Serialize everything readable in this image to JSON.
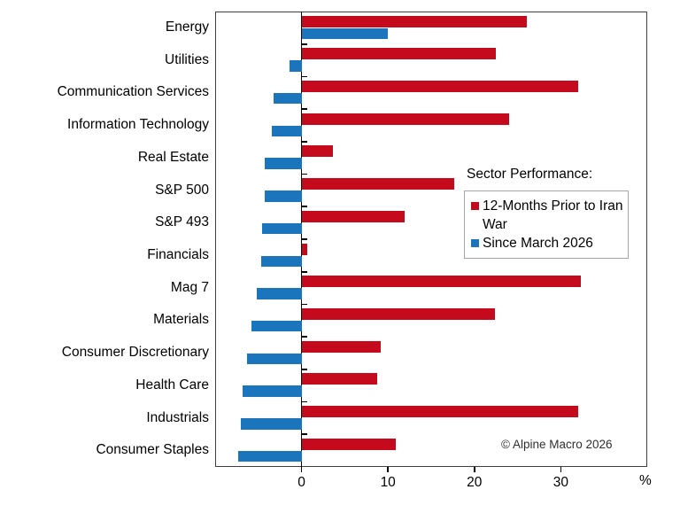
{
  "chart_data": {
    "type": "bar",
    "orientation": "horizontal",
    "categories": [
      "Energy",
      "Utilities",
      "Communication Services",
      "Information Technology",
      "Real Estate",
      "S&P 500",
      "S&P 493",
      "Financials",
      "Mag 7",
      "Materials",
      "Consumer Discretionary",
      "Health Care",
      "Industrials",
      "Consumer Staples"
    ],
    "series": [
      {
        "name": "12-Months Prior to Iran War",
        "color": "#c50a1e",
        "values": [
          26.1,
          22.5,
          32.0,
          24.0,
          3.6,
          17.7,
          11.9,
          0.7,
          32.3,
          22.4,
          9.2,
          8.8,
          32.0,
          10.9
        ]
      },
      {
        "name": "Since March 2026",
        "color": "#1b75bc",
        "values": [
          10.0,
          -1.4,
          -3.2,
          -3.4,
          -4.3,
          -4.3,
          -4.6,
          -4.7,
          -5.2,
          -5.8,
          -6.3,
          -6.8,
          -7.0,
          -7.3
        ]
      }
    ],
    "xlim": [
      -10,
      40
    ],
    "xticks": [
      0,
      10,
      20,
      30
    ],
    "xunit": "%",
    "legend_title": "Sector Performance:",
    "legend_position": "middle-right",
    "grid": false
  },
  "annotations": {
    "copyright": "© Alpine Macro 2026"
  }
}
